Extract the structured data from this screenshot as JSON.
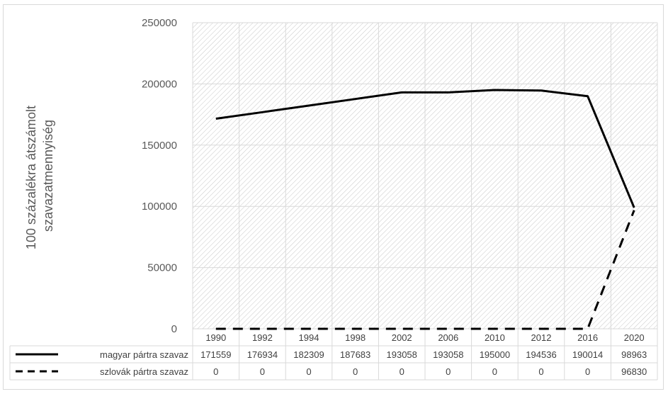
{
  "chart_data": {
    "type": "line",
    "ylabel_lines": [
      "100 százalékra átszámolt",
      "szavazatmennyiség"
    ],
    "ylim": [
      0,
      250000
    ],
    "yticks": [
      0,
      50000,
      100000,
      150000,
      200000,
      250000
    ],
    "grid": true,
    "legend": "data-table",
    "categories": [
      "1990",
      "1992",
      "1994",
      "1998",
      "2002",
      "2006",
      "2010",
      "2012",
      "2016",
      "2020"
    ],
    "series": [
      {
        "name": "magyar pártra szavaz",
        "style": "solid",
        "color": "#000000",
        "values": [
          171559,
          176934,
          182309,
          187683,
          193058,
          193058,
          195000,
          194536,
          190014,
          98963
        ]
      },
      {
        "name": "szlovák pártra szavaz",
        "style": "dashed",
        "color": "#000000",
        "values": [
          0,
          0,
          0,
          0,
          0,
          0,
          0,
          0,
          0,
          96830
        ]
      }
    ]
  }
}
